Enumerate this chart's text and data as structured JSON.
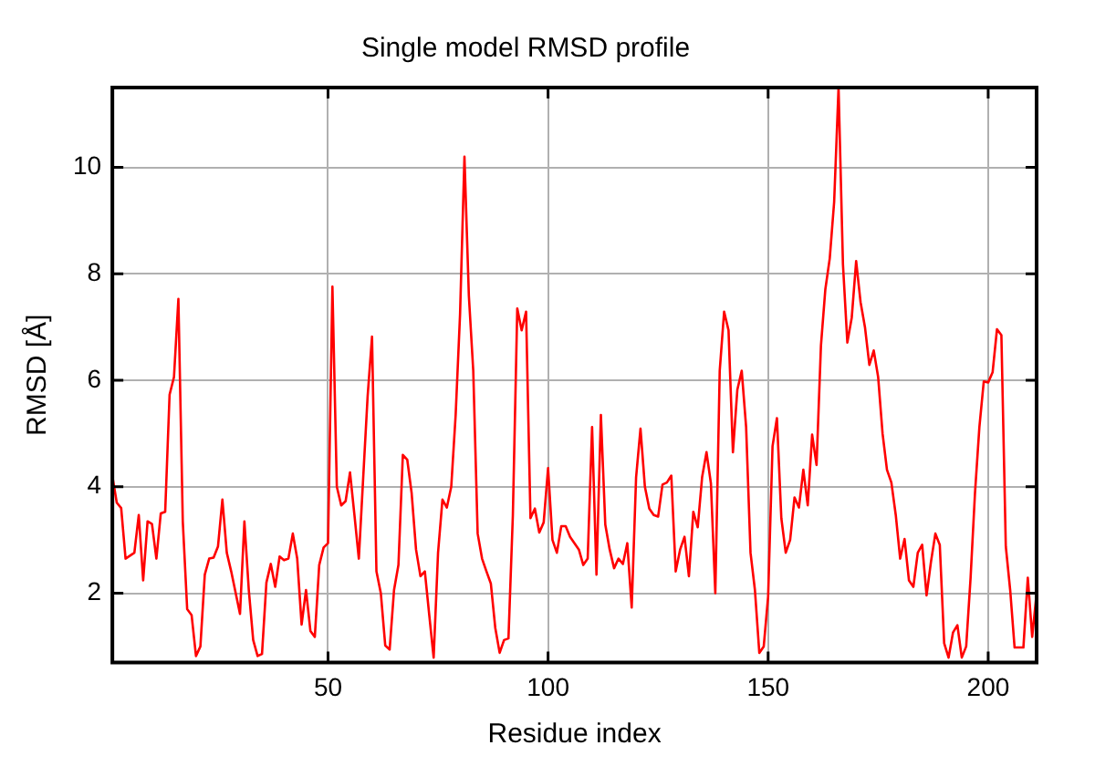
{
  "chart_data": {
    "type": "line",
    "title": "Single model RMSD profile",
    "xlabel": "Residue index",
    "ylabel": "RMSD [Å]",
    "x": [
      1,
      2,
      3,
      4,
      6,
      7,
      8,
      9,
      10,
      11,
      12,
      13,
      14,
      15,
      16,
      17,
      18,
      19,
      20,
      21,
      22,
      23,
      24,
      25,
      26,
      27,
      28,
      30,
      31,
      32,
      33,
      34,
      35,
      36,
      37,
      38,
      39,
      40,
      41,
      42,
      43,
      44,
      45,
      46,
      47,
      48,
      49,
      50,
      51,
      52,
      53,
      54,
      55,
      56,
      57,
      58,
      59,
      60,
      61,
      62,
      63,
      64,
      65,
      66,
      67,
      68,
      69,
      70,
      71,
      72,
      73,
      74,
      75,
      76,
      77,
      78,
      79,
      80,
      81,
      82,
      83,
      84,
      85,
      86,
      87,
      88,
      89,
      90,
      91,
      92,
      93,
      94,
      95,
      96,
      97,
      98,
      99,
      100,
      101,
      102,
      103,
      104,
      105,
      107,
      108,
      109,
      110,
      111,
      112,
      113,
      114,
      115,
      116,
      117,
      118,
      119,
      120,
      121,
      122,
      123,
      124,
      125,
      126,
      127,
      128,
      129,
      130,
      131,
      132,
      133,
      134,
      135,
      136,
      137,
      138,
      139,
      140,
      141,
      142,
      143,
      144,
      145,
      146,
      147,
      148,
      149,
      150,
      151,
      152,
      153,
      154,
      155,
      156,
      157,
      158,
      159,
      160,
      161,
      162,
      163,
      164,
      165,
      166,
      167,
      168,
      169,
      170,
      171,
      172,
      173,
      174,
      175,
      176,
      177,
      178,
      179,
      180,
      181,
      182,
      183,
      184,
      185,
      186,
      187,
      188,
      189,
      190,
      191,
      192,
      193,
      194,
      195,
      196,
      197,
      198,
      199,
      200,
      201,
      202,
      203,
      204,
      205,
      206,
      208,
      209,
      210,
      211
    ],
    "series": [
      {
        "color": "#ff0000",
        "values": [
          4.2,
          3.7,
          3.6,
          2.65,
          2.76,
          3.47,
          2.24,
          3.35,
          3.3,
          2.65,
          3.5,
          3.53,
          5.73,
          6.06,
          7.53,
          3.35,
          1.7,
          1.59,
          0.82,
          1.0,
          2.35,
          2.65,
          2.67,
          2.88,
          3.76,
          2.76,
          2.41,
          1.61,
          3.35,
          2.06,
          1.12,
          0.82,
          0.86,
          2.2,
          2.55,
          2.12,
          2.69,
          2.62,
          2.65,
          3.12,
          2.65,
          1.41,
          2.06,
          1.29,
          1.18,
          2.53,
          2.86,
          2.94,
          7.76,
          4.0,
          3.65,
          3.73,
          4.27,
          3.47,
          2.65,
          4.18,
          5.7,
          6.82,
          2.41,
          2.0,
          1.02,
          0.94,
          2.06,
          2.53,
          4.6,
          4.51,
          3.88,
          2.82,
          2.32,
          2.41,
          1.59,
          0.79,
          2.76,
          3.76,
          3.61,
          4.0,
          5.35,
          7.24,
          10.2,
          7.59,
          6.18,
          3.12,
          2.65,
          2.41,
          2.18,
          1.35,
          0.88,
          1.12,
          1.15,
          3.47,
          7.35,
          6.94,
          7.29,
          3.41,
          3.59,
          3.14,
          3.33,
          4.35,
          3.0,
          2.76,
          3.26,
          3.26,
          3.06,
          2.82,
          2.53,
          2.65,
          5.12,
          2.35,
          5.35,
          3.29,
          2.82,
          2.47,
          2.65,
          2.55,
          2.94,
          1.73,
          4.18,
          5.09,
          4.0,
          3.59,
          3.47,
          3.44,
          4.04,
          4.08,
          4.21,
          2.41,
          2.82,
          3.06,
          2.32,
          3.53,
          3.24,
          4.18,
          4.65,
          4.06,
          2.0,
          6.18,
          7.29,
          6.94,
          4.65,
          5.82,
          6.18,
          5.12,
          2.76,
          2.06,
          0.88,
          1.0,
          1.94,
          4.76,
          5.29,
          3.41,
          2.76,
          3.0,
          3.8,
          3.61,
          4.32,
          3.65,
          4.98,
          4.41,
          6.65,
          7.71,
          8.29,
          9.35,
          11.5,
          8.18,
          6.71,
          7.18,
          8.24,
          7.47,
          7.0,
          6.29,
          6.56,
          6.06,
          5.0,
          4.32,
          4.08,
          3.47,
          2.65,
          3.02,
          2.24,
          2.12,
          2.76,
          2.91,
          1.96,
          2.59,
          3.12,
          2.91,
          1.06,
          0.79,
          1.26,
          1.4,
          0.79,
          1.0,
          2.29,
          3.88,
          5.12,
          5.98,
          5.96,
          6.15,
          6.96,
          6.85,
          2.88,
          2.06,
          0.98,
          0.98,
          2.29,
          1.18,
          2.0
        ]
      }
    ],
    "xlim": [
      1,
      211
    ],
    "ylim": [
      0.7,
      11.5
    ],
    "xticks": [
      50,
      100,
      150,
      200
    ],
    "yticks": [
      2,
      4,
      6,
      8,
      10
    ],
    "grid": true,
    "marker": "none",
    "line_style": "solid"
  }
}
